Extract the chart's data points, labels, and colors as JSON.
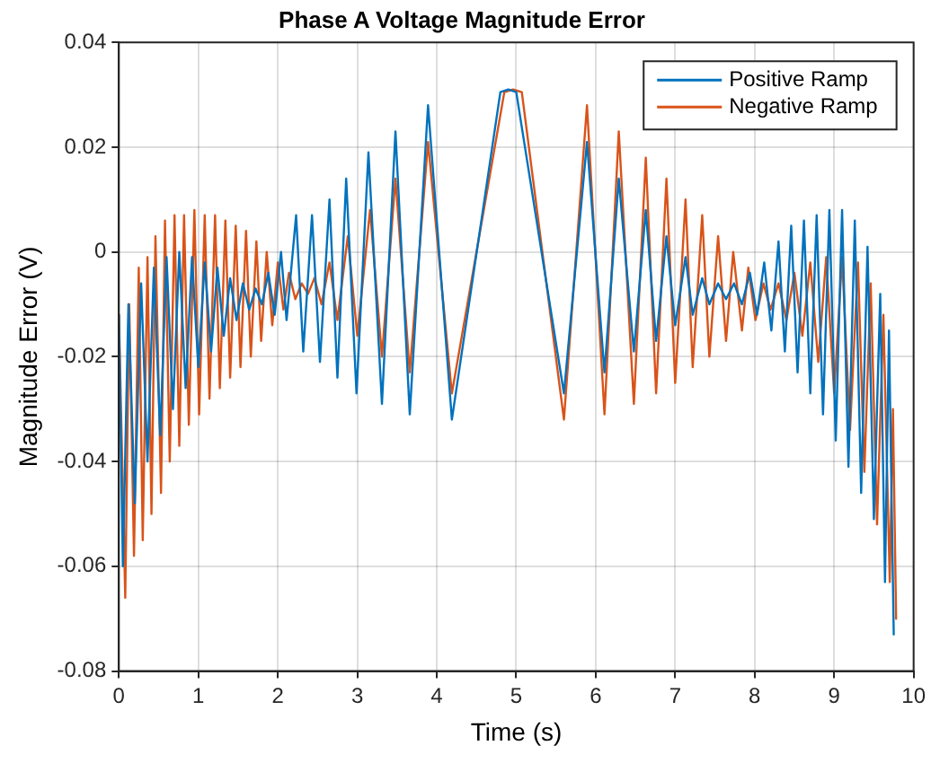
{
  "chart_data": {
    "type": "line",
    "title": "Phase A Voltage Magnitude Error",
    "xlabel": "Time (s)",
    "ylabel": "Magnitude Error (V)",
    "xlim": [
      0,
      10
    ],
    "xticks": [
      0,
      1,
      2,
      3,
      4,
      5,
      6,
      7,
      8,
      9,
      10
    ],
    "ylim": [
      -0.08,
      0.04
    ],
    "yticks": [
      -0.08,
      -0.06,
      -0.04,
      -0.02,
      0,
      0.02,
      0.04
    ],
    "grid": true,
    "legend": "top right",
    "marker": "none",
    "line_style": "solid",
    "series": [
      {
        "name": "Positive Ramp",
        "color": "#0072bd",
        "x": [
          0,
          0.05,
          0.12,
          0.2,
          0.28,
          0.36,
          0.44,
          0.52,
          0.6,
          0.68,
          0.76,
          0.84,
          0.92,
          1,
          1.08,
          1.16,
          1.24,
          1.32,
          1.4,
          1.48,
          1.56,
          1.64,
          1.72,
          1.8,
          1.88,
          1.96,
          2.04,
          2.11,
          2.23,
          2.32,
          2.43,
          2.53,
          2.65,
          2.75,
          2.86,
          2.99,
          3.14,
          3.31,
          3.48,
          3.66,
          3.89,
          4.19,
          4.8,
          4.9,
          5,
          5.6,
          5.89,
          6.11,
          6.29,
          6.48,
          6.63,
          6.76,
          6.89,
          7,
          7.13,
          7.22,
          7.34,
          7.43,
          7.54,
          7.64,
          7.74,
          7.84,
          7.94,
          8.03,
          8.12,
          8.21,
          8.3,
          8.38,
          8.46,
          8.54,
          8.62,
          8.7,
          8.78,
          8.86,
          8.94,
          9.02,
          9.1,
          9.18,
          9.26,
          9.34,
          9.42,
          9.5,
          9.58,
          9.64,
          9.69,
          9.75
        ],
        "values": [
          -0.012,
          -0.06,
          -0.01,
          -0.048,
          -0.006,
          -0.04,
          -0.003,
          -0.035,
          -0.001,
          -0.03,
          0,
          -0.026,
          -0.001,
          -0.022,
          -0.002,
          -0.019,
          -0.003,
          -0.016,
          -0.005,
          -0.013,
          -0.006,
          -0.011,
          -0.007,
          -0.01,
          -0.004,
          -0.012,
          0,
          -0.013,
          0.007,
          -0.019,
          0.007,
          -0.021,
          0.01,
          -0.024,
          0.014,
          -0.027,
          0.019,
          -0.029,
          0.023,
          -0.031,
          0.028,
          -0.032,
          0.0305,
          0.031,
          0.0305,
          -0.027,
          0.021,
          -0.023,
          0.014,
          -0.019,
          0.008,
          -0.017,
          0.003,
          -0.014,
          -0.001,
          -0.012,
          -0.005,
          -0.01,
          -0.006,
          -0.009,
          -0.006,
          -0.01,
          -0.004,
          -0.012,
          -0.002,
          -0.015,
          0.002,
          -0.019,
          0.005,
          -0.023,
          0.006,
          -0.027,
          0.007,
          -0.031,
          0.008,
          -0.036,
          0.008,
          -0.041,
          0.006,
          -0.046,
          0.001,
          -0.051,
          -0.008,
          -0.063,
          -0.015,
          -0.073
        ]
      },
      {
        "name": "Negative Ramp",
        "color": "#d95319",
        "x": [
          0,
          0.08,
          0.13,
          0.19,
          0.25,
          0.3,
          0.36,
          0.41,
          0.46,
          0.53,
          0.58,
          0.64,
          0.7,
          0.76,
          0.82,
          0.88,
          0.95,
          1.01,
          1.08,
          1.14,
          1.21,
          1.27,
          1.34,
          1.4,
          1.47,
          1.53,
          1.6,
          1.66,
          1.73,
          1.79,
          1.86,
          1.93,
          2,
          2.07,
          2.14,
          2.22,
          2.3,
          2.38,
          2.46,
          2.55,
          2.65,
          2.75,
          2.88,
          3,
          3.16,
          3.31,
          3.48,
          3.66,
          3.89,
          4.19,
          4.85,
          4.96,
          5.07,
          5.6,
          5.89,
          6.11,
          6.29,
          6.48,
          6.63,
          6.76,
          6.89,
          7,
          7.13,
          7.22,
          7.34,
          7.43,
          7.54,
          7.64,
          7.73,
          7.84,
          7.92,
          8.01,
          8.11,
          8.2,
          8.3,
          8.4,
          8.5,
          8.6,
          8.7,
          8.8,
          8.9,
          9,
          9.1,
          9.2,
          9.3,
          9.38,
          9.46,
          9.54,
          9.62,
          9.7,
          9.74,
          9.78
        ],
        "values": [
          -0.012,
          -0.066,
          -0.01,
          -0.058,
          -0.003,
          -0.055,
          -0.001,
          -0.05,
          0.003,
          -0.046,
          0.006,
          -0.04,
          0.007,
          -0.037,
          0.007,
          -0.033,
          0.008,
          -0.031,
          0.007,
          -0.028,
          0.007,
          -0.026,
          0.006,
          -0.024,
          0.005,
          -0.022,
          0.004,
          -0.02,
          0.002,
          -0.017,
          0,
          -0.014,
          -0.002,
          -0.011,
          -0.004,
          -0.009,
          -0.006,
          -0.008,
          -0.005,
          -0.01,
          -0.002,
          -0.013,
          0.003,
          -0.016,
          0.008,
          -0.02,
          0.014,
          -0.023,
          0.021,
          -0.027,
          0.0305,
          0.031,
          0.0305,
          -0.032,
          0.028,
          -0.031,
          0.023,
          -0.029,
          0.018,
          -0.027,
          0.014,
          -0.025,
          0.01,
          -0.022,
          0.007,
          -0.02,
          0.003,
          -0.017,
          0,
          -0.015,
          -0.003,
          -0.013,
          -0.006,
          -0.011,
          -0.006,
          -0.013,
          -0.004,
          -0.016,
          -0.002,
          -0.021,
          -0.001,
          -0.027,
          -0.001,
          -0.034,
          -0.002,
          -0.042,
          -0.006,
          -0.052,
          -0.012,
          -0.063,
          -0.03,
          -0.07
        ]
      }
    ]
  }
}
